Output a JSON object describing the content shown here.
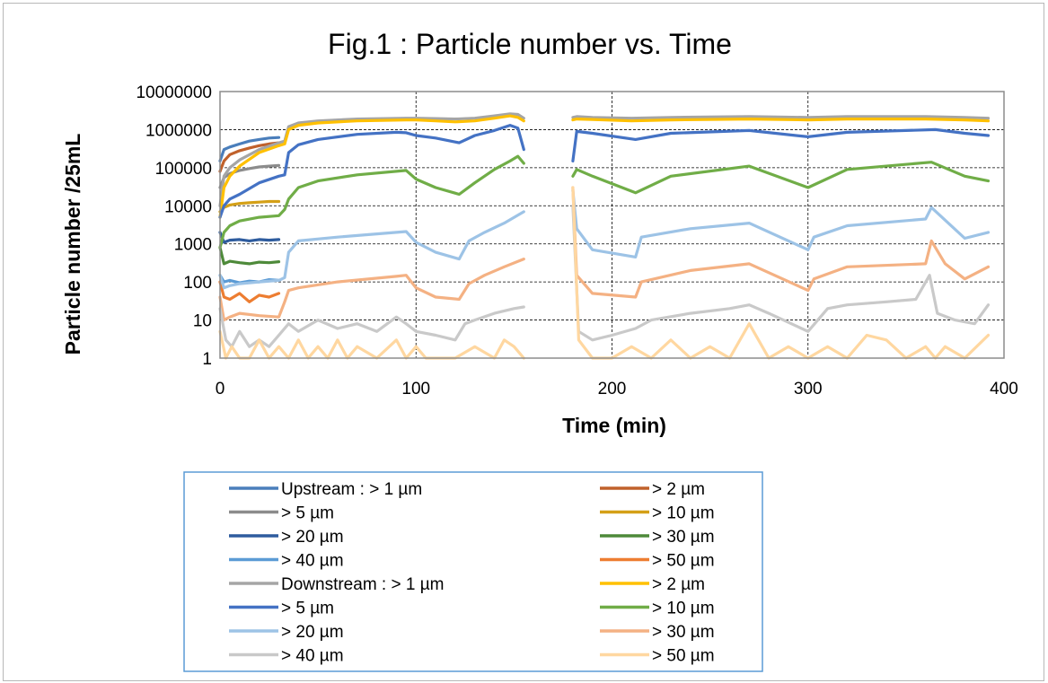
{
  "chart_data": {
    "type": "line",
    "title": "Fig.1 : Particle number vs. Time",
    "xlabel": "Time (min)",
    "ylabel": "Particle number /25mL",
    "xlim": [
      0,
      400
    ],
    "ylim": [
      1,
      10000000
    ],
    "yscale": "log",
    "xticks": [
      "0",
      "100",
      "200",
      "300",
      "400"
    ],
    "yticks": [
      "1",
      "10",
      "100",
      "1000",
      "10000",
      "100000",
      "1000000",
      "10000000"
    ],
    "grid": "dashed vertical and horizontal major gridlines",
    "legend_position": "bottom",
    "series": [
      {
        "name": "Upstream :  > 1 µm",
        "color": "#4a7ebb",
        "x": [
          0,
          2,
          5,
          10,
          15,
          20,
          25,
          30
        ],
        "y": [
          150000,
          300000,
          350000,
          420000,
          500000,
          550000,
          600000,
          620000
        ]
      },
      {
        "name": "> 2 µm",
        "color": "#c0612b",
        "x": [
          0,
          2,
          5,
          10,
          15,
          20,
          25,
          30
        ],
        "y": [
          80000,
          150000,
          220000,
          280000,
          330000,
          380000,
          420000,
          450000
        ]
      },
      {
        "name": "> 5 µm",
        "color": "#8c8c8c",
        "x": [
          0,
          2,
          5,
          10,
          15,
          20,
          25,
          30
        ],
        "y": [
          30000,
          55000,
          70000,
          85000,
          95000,
          105000,
          110000,
          115000
        ]
      },
      {
        "name": "> 10 µm",
        "color": "#d4a017",
        "x": [
          0,
          2,
          5,
          10,
          15,
          20,
          25,
          30
        ],
        "y": [
          7000,
          9000,
          10500,
          11500,
          12000,
          12500,
          13000,
          13000
        ]
      },
      {
        "name": "> 20 µm",
        "color": "#2e5c9e",
        "x": [
          0,
          2,
          5,
          10,
          15,
          20,
          25,
          30
        ],
        "y": [
          2000,
          1100,
          1250,
          1300,
          1200,
          1300,
          1250,
          1300
        ]
      },
      {
        "name": "> 30 µm",
        "color": "#4e8a3a",
        "x": [
          0,
          2,
          5,
          10,
          15,
          20,
          25,
          30
        ],
        "y": [
          800,
          300,
          350,
          320,
          300,
          330,
          320,
          340
        ]
      },
      {
        "name": "> 40 µm",
        "color": "#5b9bd5",
        "x": [
          0,
          2,
          5,
          10,
          15,
          20,
          25,
          30
        ],
        "y": [
          150,
          100,
          110,
          95,
          105,
          100,
          115,
          110
        ]
      },
      {
        "name": "> 50 µm",
        "color": "#ed7d31",
        "x": [
          0,
          2,
          5,
          10,
          15,
          20,
          25,
          30
        ],
        "y": [
          100,
          40,
          35,
          50,
          30,
          45,
          40,
          50
        ]
      },
      {
        "name": "Downstream :  > 1 µm",
        "color": "#a5a5a5",
        "x": [
          0,
          2,
          5,
          10,
          20,
          30,
          33,
          35,
          40,
          50,
          70,
          95,
          100,
          110,
          120,
          130,
          140,
          148,
          152,
          155,
          null,
          180,
          182,
          190,
          210,
          230,
          270,
          300,
          320,
          360,
          380,
          392
        ],
        "y": [
          10000,
          60000,
          100000,
          160000,
          300000,
          450000,
          500000,
          1200000,
          1500000,
          1700000,
          1900000,
          2000000,
          2000000,
          1950000,
          1900000,
          2000000,
          2300000,
          2600000,
          2500000,
          2000000,
          null,
          2100000,
          2200000,
          2100000,
          2000000,
          2100000,
          2200000,
          2100000,
          2200000,
          2200000,
          2100000,
          2000000
        ]
      },
      {
        "name": "> 2 µm",
        "color": "#ffc000",
        "x": [
          0,
          2,
          5,
          10,
          20,
          30,
          33,
          35,
          40,
          50,
          70,
          95,
          100,
          110,
          120,
          130,
          140,
          148,
          152,
          155,
          null,
          180,
          182,
          190,
          210,
          230,
          270,
          300,
          320,
          360,
          380,
          392
        ],
        "y": [
          5000,
          30000,
          60000,
          110000,
          250000,
          380000,
          420000,
          1000000,
          1300000,
          1500000,
          1700000,
          1800000,
          1800000,
          1700000,
          1600000,
          1700000,
          2000000,
          2300000,
          2100000,
          1700000,
          null,
          1800000,
          1900000,
          1850000,
          1700000,
          1800000,
          1900000,
          1800000,
          1900000,
          1900000,
          1800000,
          1700000
        ]
      },
      {
        "name": "> 5 µm",
        "color": "#4472c4",
        "x": [
          0,
          2,
          5,
          10,
          20,
          30,
          33,
          35,
          40,
          50,
          70,
          90,
          95,
          100,
          110,
          122,
          130,
          140,
          148,
          152,
          155,
          null,
          180,
          182,
          190,
          212,
          230,
          270,
          300,
          320,
          365,
          380,
          392
        ],
        "y": [
          5000,
          10000,
          15000,
          20000,
          40000,
          60000,
          65000,
          250000,
          400000,
          550000,
          750000,
          850000,
          830000,
          700000,
          600000,
          450000,
          700000,
          950000,
          1300000,
          1100000,
          300000,
          null,
          150000,
          900000,
          800000,
          550000,
          800000,
          950000,
          650000,
          850000,
          1000000,
          800000,
          700000
        ]
      },
      {
        "name": "> 10 µm",
        "color": "#70ad47",
        "x": [
          0,
          2,
          5,
          10,
          20,
          30,
          33,
          35,
          40,
          50,
          70,
          95,
          100,
          110,
          122,
          130,
          140,
          148,
          152,
          155,
          null,
          180,
          182,
          190,
          212,
          230,
          270,
          300,
          320,
          363,
          380,
          392
        ],
        "y": [
          800,
          2000,
          3000,
          4000,
          5000,
          5500,
          8000,
          15000,
          30000,
          45000,
          65000,
          85000,
          50000,
          30000,
          20000,
          40000,
          90000,
          150000,
          200000,
          130000,
          null,
          60000,
          90000,
          60000,
          22000,
          60000,
          110000,
          30000,
          90000,
          140000,
          60000,
          45000
        ]
      },
      {
        "name": "> 20 µm",
        "color": "#9dc3e6",
        "x": [
          0,
          2,
          5,
          10,
          20,
          30,
          33,
          35,
          40,
          60,
          90,
          95,
          100,
          110,
          122,
          127,
          135,
          145,
          155,
          null,
          180,
          182,
          190,
          212,
          215,
          240,
          270,
          300,
          303,
          320,
          360,
          363,
          380,
          392
        ],
        "y": [
          150,
          70,
          80,
          90,
          100,
          110,
          130,
          600,
          1200,
          1500,
          2000,
          2100,
          1100,
          600,
          400,
          1200,
          2000,
          3500,
          7000,
          null,
          25000,
          2500,
          700,
          450,
          1500,
          2500,
          3500,
          700,
          1500,
          3000,
          4500,
          9000,
          1400,
          2000
        ]
      },
      {
        "name": "> 30 µm",
        "color": "#f4b183",
        "x": [
          0,
          2,
          5,
          10,
          20,
          30,
          33,
          35,
          40,
          60,
          90,
          95,
          100,
          110,
          122,
          127,
          135,
          145,
          155,
          null,
          180,
          182,
          190,
          212,
          215,
          240,
          270,
          300,
          303,
          320,
          360,
          363,
          370,
          380,
          392
        ],
        "y": [
          40,
          10,
          12,
          15,
          13,
          12,
          30,
          60,
          70,
          100,
          140,
          150,
          70,
          40,
          35,
          90,
          150,
          250,
          400,
          null,
          30000,
          150,
          50,
          40,
          100,
          200,
          300,
          60,
          120,
          250,
          300,
          1200,
          300,
          120,
          250
        ]
      },
      {
        "name": "> 40 µm",
        "color": "#c9c9c9",
        "x": [
          0,
          3,
          6,
          10,
          15,
          20,
          25,
          30,
          35,
          40,
          50,
          60,
          70,
          80,
          90,
          95,
          100,
          110,
          120,
          125,
          130,
          140,
          150,
          155,
          null,
          180,
          183,
          190,
          200,
          212,
          220,
          240,
          260,
          270,
          280,
          300,
          310,
          320,
          340,
          355,
          362,
          366,
          375,
          385,
          392
        ],
        "y": [
          20,
          3,
          2,
          5,
          2,
          3,
          2,
          4,
          8,
          5,
          10,
          6,
          8,
          5,
          12,
          8,
          5,
          4,
          3,
          8,
          10,
          15,
          20,
          22,
          null,
          10000,
          5,
          3,
          4,
          6,
          10,
          15,
          20,
          25,
          15,
          5,
          20,
          25,
          30,
          35,
          150,
          15,
          10,
          8,
          25
        ]
      },
      {
        "name": "> 50 µm",
        "color": "#ffd7a0",
        "x": [
          0,
          3,
          6,
          10,
          15,
          20,
          25,
          30,
          35,
          40,
          45,
          50,
          55,
          60,
          65,
          70,
          80,
          90,
          95,
          100,
          105,
          110,
          120,
          130,
          140,
          145,
          150,
          155,
          null,
          180,
          183,
          190,
          200,
          210,
          220,
          230,
          240,
          250,
          260,
          270,
          280,
          290,
          300,
          310,
          320,
          330,
          340,
          350,
          360,
          365,
          370,
          380,
          392
        ],
        "y": [
          5,
          1,
          2,
          1,
          1,
          3,
          1,
          2,
          1,
          3,
          1,
          2,
          1,
          3,
          1,
          2,
          1,
          3,
          1,
          2,
          1,
          1,
          1,
          2,
          1,
          3,
          2,
          1,
          null,
          30000,
          3,
          1,
          1,
          2,
          1,
          3,
          1,
          2,
          1,
          8,
          1,
          2,
          1,
          2,
          1,
          4,
          3,
          1,
          2,
          1,
          2,
          1,
          4
        ]
      }
    ]
  }
}
